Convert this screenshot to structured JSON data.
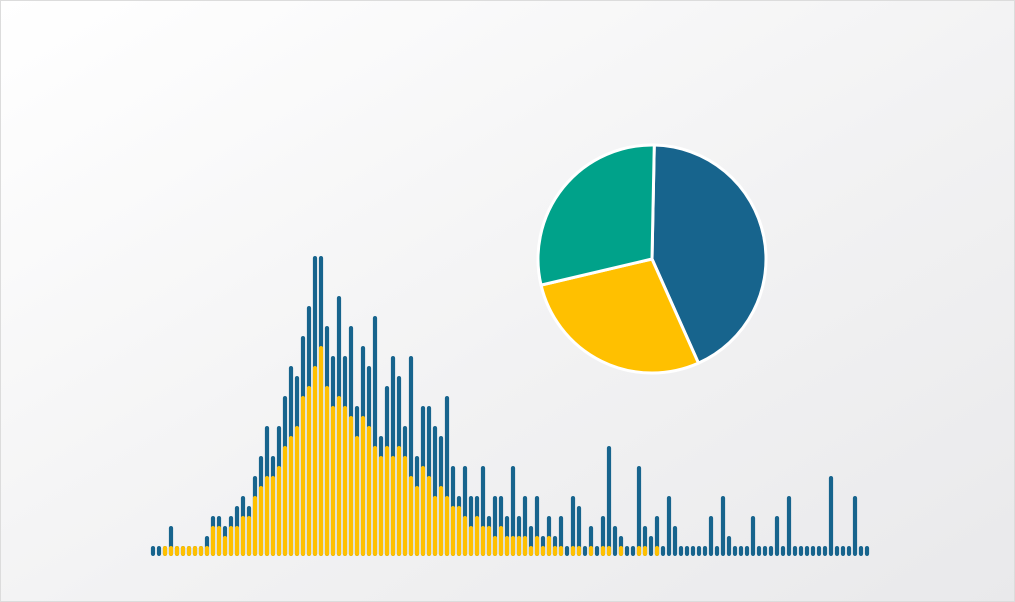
{
  "chart_data": [
    {
      "type": "bar",
      "ylim": [
        0,
        30
      ],
      "series": [
        {
          "color": "#17648d",
          "values": [
            1,
            1,
            1,
            3,
            1,
            1,
            1,
            1,
            1,
            2,
            4,
            4,
            3,
            4,
            5,
            6,
            5,
            8,
            10,
            13,
            10,
            13,
            16,
            19,
            18,
            22,
            25,
            30,
            30,
            23,
            20,
            26,
            20,
            23,
            15,
            21,
            19,
            24,
            12,
            17,
            20,
            18,
            13,
            20,
            10,
            15,
            15,
            13,
            12,
            16,
            9,
            6,
            9,
            6,
            6,
            9,
            4,
            6,
            6,
            4,
            9,
            4,
            6,
            3,
            6,
            2,
            4,
            2,
            4,
            1,
            6,
            5,
            1,
            3,
            1,
            4,
            11,
            3,
            2,
            1,
            1,
            9,
            3,
            2,
            4,
            1,
            6,
            3,
            1,
            1,
            1,
            1,
            1,
            4,
            1,
            6,
            2,
            1,
            1,
            1,
            4,
            1,
            1,
            1,
            4,
            1,
            6,
            1,
            1,
            1,
            1,
            1,
            1,
            8,
            1,
            1,
            1,
            6,
            1,
            1
          ]
        },
        {
          "color": "#ffc000",
          "values": [
            0,
            0,
            1,
            1,
            1,
            1,
            1,
            1,
            1,
            1,
            3,
            3,
            2,
            3,
            3,
            4,
            4,
            6,
            7,
            8,
            8,
            9,
            11,
            12,
            13,
            16,
            17,
            19,
            21,
            17,
            15,
            16,
            15,
            14,
            12,
            14,
            13,
            11,
            10,
            11,
            10,
            11,
            10,
            8,
            7,
            9,
            8,
            6,
            7,
            6,
            5,
            5,
            4,
            3,
            4,
            3,
            3,
            2,
            3,
            2,
            2,
            2,
            2,
            1,
            2,
            1,
            2,
            1,
            1,
            0,
            1,
            1,
            0,
            1,
            0,
            1,
            1,
            0,
            1,
            0,
            0,
            1,
            1,
            0,
            1,
            0,
            0,
            0,
            0,
            0,
            0,
            0,
            0,
            0,
            0,
            0,
            0,
            0,
            0,
            0,
            0,
            0,
            0,
            0,
            0,
            0,
            0,
            0,
            0,
            0,
            0,
            0,
            0,
            0,
            0,
            0,
            0,
            0,
            0,
            0
          ]
        }
      ]
    },
    {
      "type": "pie",
      "values": [
        43,
        28,
        29
      ],
      "colors": [
        "#17648d",
        "#ffc000",
        "#00a28a"
      ]
    }
  ]
}
